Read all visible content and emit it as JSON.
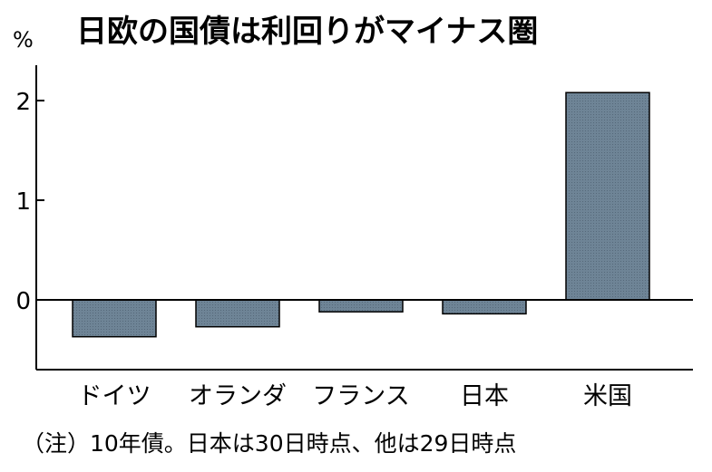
{
  "chart_data": {
    "type": "bar",
    "title": "日欧の国債は利回りがマイナス圏",
    "unit": "%",
    "categories": [
      "ドイツ",
      "オランダ",
      "フランス",
      "日本",
      "米国"
    ],
    "values": [
      -0.37,
      -0.27,
      -0.12,
      -0.14,
      2.08
    ],
    "yticks": [
      "0",
      "1",
      "2"
    ],
    "ylim": [
      -0.7,
      2.4
    ],
    "note": "（注）10年債。日本は30日時点、他は29日時点",
    "bar_color": "#6e8496",
    "axis_color": "#000000",
    "grid": false
  }
}
